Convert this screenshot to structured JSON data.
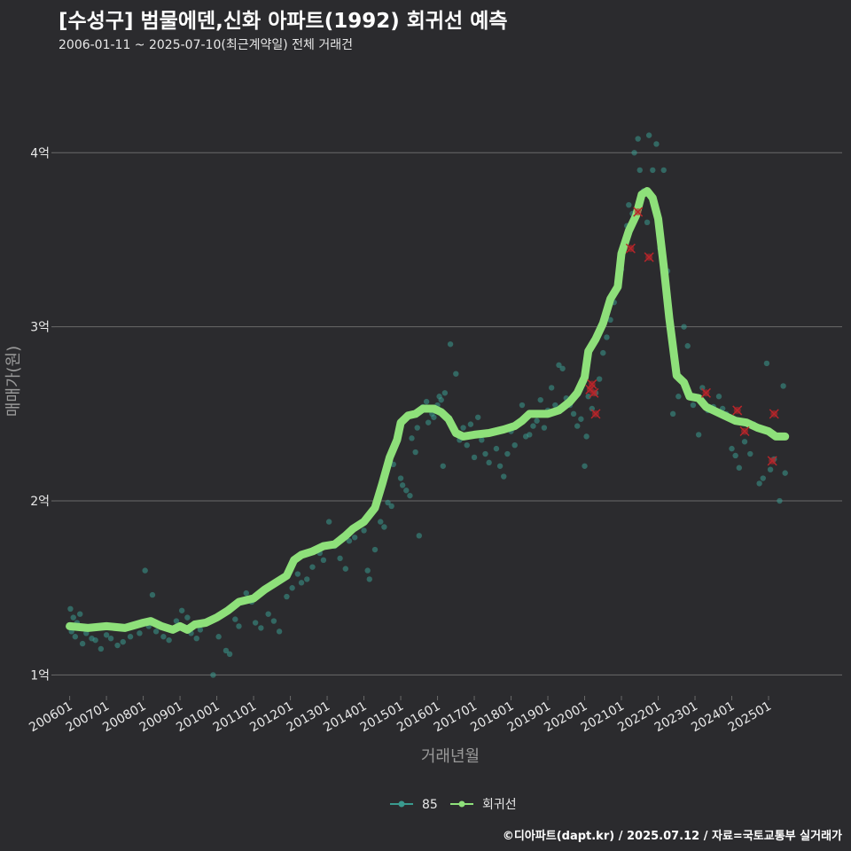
{
  "title": "[수성구] 범물에덴,신화 아파트(1992) 회귀선 예측",
  "subtitle": "2006-01-11 ~ 2025-07-10(최근계약일) 전체 거래건",
  "credit": "©디아파트(dapt.kr) / 2025.07.12 / 자료=국토교통부 실거래가",
  "colors": {
    "background": "#2b2b2e",
    "grid": "#6a6a6a",
    "scatter": "#3a9a8f",
    "regression": "#8ee07a",
    "outlier": "#b8252a",
    "text": "#e8e8e8",
    "axis_title": "#9a9a9a"
  },
  "chart_data": {
    "type": "line",
    "title": "[수성구] 범물에덴,신화 아파트(1992) 회귀선 예측",
    "xlabel": "거래년월",
    "ylabel": "매매가(원)",
    "xlim": [
      2005.6,
      2027.0
    ],
    "ylim": [
      0.88,
      4.48
    ],
    "y_ticks": [
      {
        "value": 1,
        "label": "1억"
      },
      {
        "value": 2,
        "label": "2억"
      },
      {
        "value": 3,
        "label": "3억"
      },
      {
        "value": 4,
        "label": "4억"
      }
    ],
    "x_ticks": [
      {
        "value": 2006,
        "label": "200601"
      },
      {
        "value": 2007,
        "label": "200701"
      },
      {
        "value": 2008,
        "label": "200801"
      },
      {
        "value": 2009,
        "label": "200901"
      },
      {
        "value": 2010,
        "label": "201001"
      },
      {
        "value": 2011,
        "label": "201101"
      },
      {
        "value": 2012,
        "label": "201201"
      },
      {
        "value": 2013,
        "label": "201301"
      },
      {
        "value": 2014,
        "label": "201401"
      },
      {
        "value": 2015,
        "label": "201501"
      },
      {
        "value": 2016,
        "label": "201601"
      },
      {
        "value": 2017,
        "label": "201701"
      },
      {
        "value": 2018,
        "label": "201801"
      },
      {
        "value": 2019,
        "label": "201901"
      },
      {
        "value": 2020,
        "label": "202001"
      },
      {
        "value": 2021,
        "label": "202101"
      },
      {
        "value": 2022,
        "label": "202201"
      },
      {
        "value": 2023,
        "label": "202301"
      },
      {
        "value": 2024,
        "label": "202401"
      },
      {
        "value": 2025,
        "label": "202501"
      }
    ],
    "legend": {
      "position": "bottom",
      "items": [
        {
          "label": "85",
          "color": "#3a9a8f"
        },
        {
          "label": "회귀선",
          "color": "#8ee07a"
        }
      ]
    },
    "series": [
      {
        "name": "회귀선",
        "type": "line",
        "points": [
          [
            2006.0,
            1.28
          ],
          [
            2006.5,
            1.27
          ],
          [
            2007.0,
            1.28
          ],
          [
            2007.5,
            1.27
          ],
          [
            2008.0,
            1.3
          ],
          [
            2008.2,
            1.31
          ],
          [
            2008.5,
            1.28
          ],
          [
            2008.8,
            1.26
          ],
          [
            2009.0,
            1.28
          ],
          [
            2009.2,
            1.26
          ],
          [
            2009.4,
            1.29
          ],
          [
            2009.7,
            1.3
          ],
          [
            2010.0,
            1.33
          ],
          [
            2010.3,
            1.37
          ],
          [
            2010.6,
            1.42
          ],
          [
            2011.0,
            1.44
          ],
          [
            2011.3,
            1.49
          ],
          [
            2011.6,
            1.53
          ],
          [
            2011.9,
            1.57
          ],
          [
            2012.1,
            1.66
          ],
          [
            2012.3,
            1.69
          ],
          [
            2012.6,
            1.71
          ],
          [
            2012.9,
            1.74
          ],
          [
            2013.2,
            1.75
          ],
          [
            2013.5,
            1.8
          ],
          [
            2013.7,
            1.84
          ],
          [
            2014.0,
            1.88
          ],
          [
            2014.3,
            1.96
          ],
          [
            2014.5,
            2.1
          ],
          [
            2014.7,
            2.25
          ],
          [
            2014.9,
            2.35
          ],
          [
            2015.0,
            2.45
          ],
          [
            2015.2,
            2.49
          ],
          [
            2015.4,
            2.5
          ],
          [
            2015.6,
            2.53
          ],
          [
            2015.9,
            2.53
          ],
          [
            2016.1,
            2.51
          ],
          [
            2016.3,
            2.47
          ],
          [
            2016.5,
            2.39
          ],
          [
            2016.7,
            2.37
          ],
          [
            2017.0,
            2.38
          ],
          [
            2017.4,
            2.39
          ],
          [
            2017.8,
            2.41
          ],
          [
            2018.1,
            2.43
          ],
          [
            2018.3,
            2.46
          ],
          [
            2018.5,
            2.5
          ],
          [
            2018.8,
            2.5
          ],
          [
            2019.0,
            2.5
          ],
          [
            2019.3,
            2.52
          ],
          [
            2019.6,
            2.57
          ],
          [
            2019.8,
            2.62
          ],
          [
            2020.0,
            2.71
          ],
          [
            2020.1,
            2.86
          ],
          [
            2020.3,
            2.93
          ],
          [
            2020.5,
            3.02
          ],
          [
            2020.7,
            3.16
          ],
          [
            2020.9,
            3.23
          ],
          [
            2021.0,
            3.42
          ],
          [
            2021.2,
            3.55
          ],
          [
            2021.4,
            3.64
          ],
          [
            2021.55,
            3.76
          ],
          [
            2021.7,
            3.78
          ],
          [
            2021.85,
            3.74
          ],
          [
            2022.0,
            3.62
          ],
          [
            2022.15,
            3.35
          ],
          [
            2022.3,
            3.05
          ],
          [
            2022.5,
            2.72
          ],
          [
            2022.7,
            2.68
          ],
          [
            2022.85,
            2.6
          ],
          [
            2023.1,
            2.59
          ],
          [
            2023.3,
            2.54
          ],
          [
            2023.5,
            2.52
          ],
          [
            2023.8,
            2.49
          ],
          [
            2024.1,
            2.46
          ],
          [
            2024.4,
            2.45
          ],
          [
            2024.7,
            2.42
          ],
          [
            2025.0,
            2.4
          ],
          [
            2025.2,
            2.37
          ],
          [
            2025.45,
            2.37
          ]
        ]
      },
      {
        "name": "85",
        "type": "scatter",
        "points": [
          [
            2006.02,
            1.38
          ],
          [
            2006.05,
            1.25
          ],
          [
            2006.1,
            1.33
          ],
          [
            2006.15,
            1.22
          ],
          [
            2006.2,
            1.3
          ],
          [
            2006.28,
            1.35
          ],
          [
            2006.35,
            1.18
          ],
          [
            2006.45,
            1.24
          ],
          [
            2006.6,
            1.21
          ],
          [
            2006.7,
            1.2
          ],
          [
            2006.85,
            1.15
          ],
          [
            2007.0,
            1.23
          ],
          [
            2007.12,
            1.21
          ],
          [
            2007.3,
            1.17
          ],
          [
            2007.45,
            1.19
          ],
          [
            2007.65,
            1.22
          ],
          [
            2007.9,
            1.24
          ],
          [
            2008.05,
            1.6
          ],
          [
            2008.15,
            1.28
          ],
          [
            2008.25,
            1.46
          ],
          [
            2008.35,
            1.25
          ],
          [
            2008.55,
            1.22
          ],
          [
            2008.7,
            1.2
          ],
          [
            2008.9,
            1.31
          ],
          [
            2009.05,
            1.37
          ],
          [
            2009.2,
            1.33
          ],
          [
            2009.3,
            1.24
          ],
          [
            2009.45,
            1.21
          ],
          [
            2009.55,
            1.26
          ],
          [
            2009.65,
            1.3
          ],
          [
            2009.9,
            1.0
          ],
          [
            2010.05,
            1.22
          ],
          [
            2010.25,
            1.14
          ],
          [
            2010.35,
            1.12
          ],
          [
            2010.5,
            1.32
          ],
          [
            2010.6,
            1.28
          ],
          [
            2010.8,
            1.47
          ],
          [
            2010.95,
            1.42
          ],
          [
            2011.05,
            1.3
          ],
          [
            2011.2,
            1.27
          ],
          [
            2011.4,
            1.35
          ],
          [
            2011.55,
            1.31
          ],
          [
            2011.7,
            1.25
          ],
          [
            2011.9,
            1.45
          ],
          [
            2012.05,
            1.5
          ],
          [
            2012.2,
            1.58
          ],
          [
            2012.3,
            1.53
          ],
          [
            2012.45,
            1.55
          ],
          [
            2012.6,
            1.62
          ],
          [
            2012.8,
            1.7
          ],
          [
            2012.9,
            1.66
          ],
          [
            2013.05,
            1.88
          ],
          [
            2013.2,
            1.74
          ],
          [
            2013.35,
            1.67
          ],
          [
            2013.5,
            1.61
          ],
          [
            2013.6,
            1.77
          ],
          [
            2013.75,
            1.79
          ],
          [
            2014.0,
            1.83
          ],
          [
            2014.1,
            1.6
          ],
          [
            2014.15,
            1.55
          ],
          [
            2014.3,
            1.72
          ],
          [
            2014.45,
            1.88
          ],
          [
            2014.55,
            1.85
          ],
          [
            2014.65,
            1.99
          ],
          [
            2014.75,
            1.97
          ],
          [
            2014.8,
            2.21
          ],
          [
            2015.0,
            2.13
          ],
          [
            2015.05,
            2.09
          ],
          [
            2015.15,
            2.06
          ],
          [
            2015.25,
            2.03
          ],
          [
            2015.3,
            2.36
          ],
          [
            2015.4,
            2.28
          ],
          [
            2015.45,
            2.42
          ],
          [
            2015.5,
            1.8
          ],
          [
            2015.6,
            2.54
          ],
          [
            2015.7,
            2.57
          ],
          [
            2015.75,
            2.45
          ],
          [
            2015.85,
            2.5
          ],
          [
            2015.9,
            2.48
          ],
          [
            2016.0,
            2.55
          ],
          [
            2016.05,
            2.6
          ],
          [
            2016.1,
            2.58
          ],
          [
            2016.15,
            2.2
          ],
          [
            2016.2,
            2.62
          ],
          [
            2016.35,
            2.9
          ],
          [
            2016.5,
            2.73
          ],
          [
            2016.6,
            2.35
          ],
          [
            2016.7,
            2.42
          ],
          [
            2016.8,
            2.32
          ],
          [
            2016.9,
            2.44
          ],
          [
            2017.0,
            2.25
          ],
          [
            2017.1,
            2.48
          ],
          [
            2017.2,
            2.35
          ],
          [
            2017.3,
            2.27
          ],
          [
            2017.4,
            2.22
          ],
          [
            2017.5,
            2.4
          ],
          [
            2017.6,
            2.3
          ],
          [
            2017.7,
            2.2
          ],
          [
            2017.8,
            2.14
          ],
          [
            2017.9,
            2.27
          ],
          [
            2018.0,
            2.4
          ],
          [
            2018.1,
            2.32
          ],
          [
            2018.2,
            2.44
          ],
          [
            2018.3,
            2.55
          ],
          [
            2018.4,
            2.37
          ],
          [
            2018.5,
            2.38
          ],
          [
            2018.6,
            2.43
          ],
          [
            2018.7,
            2.46
          ],
          [
            2018.8,
            2.58
          ],
          [
            2018.9,
            2.42
          ],
          [
            2019.0,
            2.52
          ],
          [
            2019.1,
            2.65
          ],
          [
            2019.2,
            2.55
          ],
          [
            2019.3,
            2.78
          ],
          [
            2019.4,
            2.76
          ],
          [
            2019.5,
            2.59
          ],
          [
            2019.6,
            2.55
          ],
          [
            2019.7,
            2.5
          ],
          [
            2019.8,
            2.43
          ],
          [
            2019.9,
            2.47
          ],
          [
            2020.0,
            2.2
          ],
          [
            2020.05,
            2.37
          ],
          [
            2020.1,
            2.6
          ],
          [
            2020.2,
            2.53
          ],
          [
            2020.3,
            2.62
          ],
          [
            2020.4,
            2.7
          ],
          [
            2020.5,
            2.85
          ],
          [
            2020.6,
            2.94
          ],
          [
            2020.7,
            3.04
          ],
          [
            2020.8,
            3.14
          ],
          [
            2020.85,
            3.22
          ],
          [
            2020.9,
            3.28
          ],
          [
            2021.0,
            3.33
          ],
          [
            2021.1,
            3.47
          ],
          [
            2021.15,
            3.58
          ],
          [
            2021.2,
            3.7
          ],
          [
            2021.3,
            3.65
          ],
          [
            2021.35,
            4.0
          ],
          [
            2021.45,
            4.08
          ],
          [
            2021.5,
            3.9
          ],
          [
            2021.6,
            3.78
          ],
          [
            2021.7,
            3.6
          ],
          [
            2021.75,
            4.1
          ],
          [
            2021.85,
            3.9
          ],
          [
            2021.95,
            4.05
          ],
          [
            2022.05,
            3.45
          ],
          [
            2022.15,
            3.9
          ],
          [
            2022.25,
            3.32
          ],
          [
            2022.4,
            2.5
          ],
          [
            2022.55,
            2.6
          ],
          [
            2022.7,
            3.0
          ],
          [
            2022.8,
            2.89
          ],
          [
            2022.95,
            2.55
          ],
          [
            2023.1,
            2.38
          ],
          [
            2023.2,
            2.65
          ],
          [
            2023.35,
            2.52
          ],
          [
            2023.5,
            2.54
          ],
          [
            2023.65,
            2.6
          ],
          [
            2023.75,
            2.53
          ],
          [
            2023.85,
            2.5
          ],
          [
            2024.0,
            2.3
          ],
          [
            2024.1,
            2.26
          ],
          [
            2024.2,
            2.19
          ],
          [
            2024.35,
            2.34
          ],
          [
            2024.5,
            2.27
          ],
          [
            2024.6,
            2.44
          ],
          [
            2024.75,
            2.1
          ],
          [
            2024.85,
            2.13
          ],
          [
            2024.95,
            2.79
          ],
          [
            2025.05,
            2.18
          ],
          [
            2025.15,
            2.24
          ],
          [
            2025.3,
            2.0
          ],
          [
            2025.4,
            2.66
          ],
          [
            2025.45,
            2.16
          ]
        ]
      },
      {
        "name": "outliers",
        "type": "scatter-x",
        "points": [
          [
            2020.15,
            2.64
          ],
          [
            2020.2,
            2.67
          ],
          [
            2020.25,
            2.62
          ],
          [
            2020.3,
            2.5
          ],
          [
            2021.45,
            3.66
          ],
          [
            2021.25,
            3.45
          ],
          [
            2021.75,
            3.4
          ],
          [
            2023.3,
            2.62
          ],
          [
            2024.15,
            2.52
          ],
          [
            2024.35,
            2.4
          ],
          [
            2025.15,
            2.5
          ],
          [
            2025.1,
            2.23
          ]
        ]
      }
    ]
  }
}
